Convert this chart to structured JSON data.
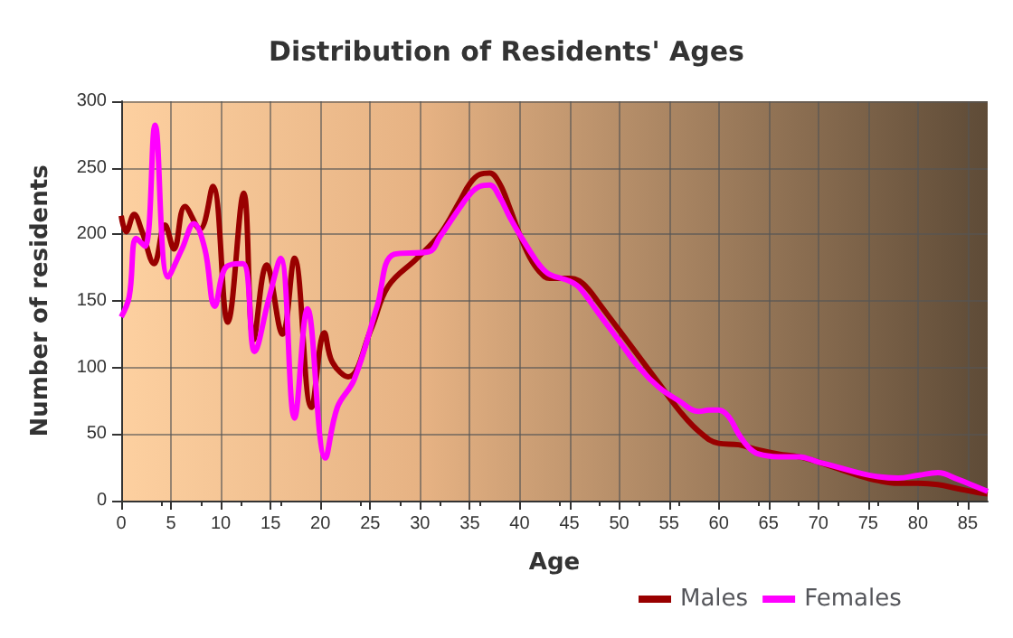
{
  "chart_data": {
    "type": "line",
    "title": "Distribution of Residents' Ages",
    "xlabel": "Age",
    "ylabel": "Number of residents",
    "xlim": [
      0,
      87
    ],
    "xticks": [
      0,
      5,
      10,
      15,
      20,
      25,
      30,
      35,
      40,
      45,
      50,
      55,
      60,
      65,
      70,
      75,
      80,
      85
    ],
    "ylim": [
      0,
      300
    ],
    "yticks": [
      0,
      50,
      100,
      150,
      200,
      250,
      300
    ],
    "grid": true,
    "legend": "bottom",
    "marker": "none",
    "line_style": "solid",
    "series": [
      {
        "name": "Males",
        "color": "#990000",
        "x": [
          0,
          0.5,
          1.3,
          2.1,
          3.3,
          4.4,
          5.3,
          6.4,
          7.9,
          9.2,
          10.7,
          12.3,
          13.3,
          14.6,
          16.2,
          17.4,
          19.1,
          20.4,
          21.2,
          22.8,
          25.1,
          26.8,
          29.7,
          32,
          34,
          35,
          36,
          37,
          38,
          39,
          40,
          41,
          42,
          43,
          45,
          46,
          47,
          48,
          50,
          52,
          54,
          56,
          58,
          60,
          62,
          64,
          66,
          68,
          70,
          72,
          74,
          76,
          78,
          80,
          82,
          84,
          86,
          87
        ],
        "values": [
          214,
          202,
          215,
          202,
          178,
          207,
          189,
          221,
          204,
          236,
          134,
          231,
          121,
          177,
          125,
          182,
          70,
          126,
          104,
          93,
          129,
          161,
          182,
          200,
          225,
          238,
          245,
          246,
          238,
          220,
          200,
          183,
          172,
          167,
          167,
          165,
          158,
          148,
          128,
          108,
          88,
          68,
          52,
          43,
          42,
          38,
          35,
          33,
          29,
          24,
          19,
          15,
          13,
          13,
          12,
          9,
          6,
          5
        ]
      },
      {
        "name": "Females",
        "color": "#ff00ff",
        "x": [
          0,
          0.8,
          1.5,
          2.4,
          3.4,
          4.7,
          6.1,
          7.3,
          8.4,
          9.4,
          10.6,
          12.2,
          13.4,
          14.8,
          16,
          17.4,
          18.7,
          20.5,
          21.7,
          23.4,
          25.7,
          27.4,
          30.9,
          32,
          34,
          35,
          36,
          37,
          38,
          39,
          40,
          41,
          42,
          43,
          45,
          46,
          48,
          50,
          52,
          54,
          56,
          58,
          59,
          60,
          61,
          62,
          63,
          64,
          66,
          68,
          70,
          72,
          74,
          76,
          78,
          80,
          82,
          84,
          86,
          87
        ],
        "values": [
          138,
          153,
          197,
          191,
          282,
          168,
          189,
          208,
          189,
          146,
          176,
          178,
          112,
          151,
          182,
          62,
          144,
          32,
          70,
          91,
          146,
          185,
          187,
          198,
          220,
          230,
          236,
          237,
          228,
          213,
          200,
          188,
          177,
          170,
          165,
          160,
          140,
          120,
          100,
          85,
          75,
          67,
          68,
          68,
          63,
          50,
          40,
          35,
          33,
          33,
          29,
          25,
          21,
          18,
          17,
          19,
          21,
          16,
          10,
          7
        ]
      }
    ]
  }
}
